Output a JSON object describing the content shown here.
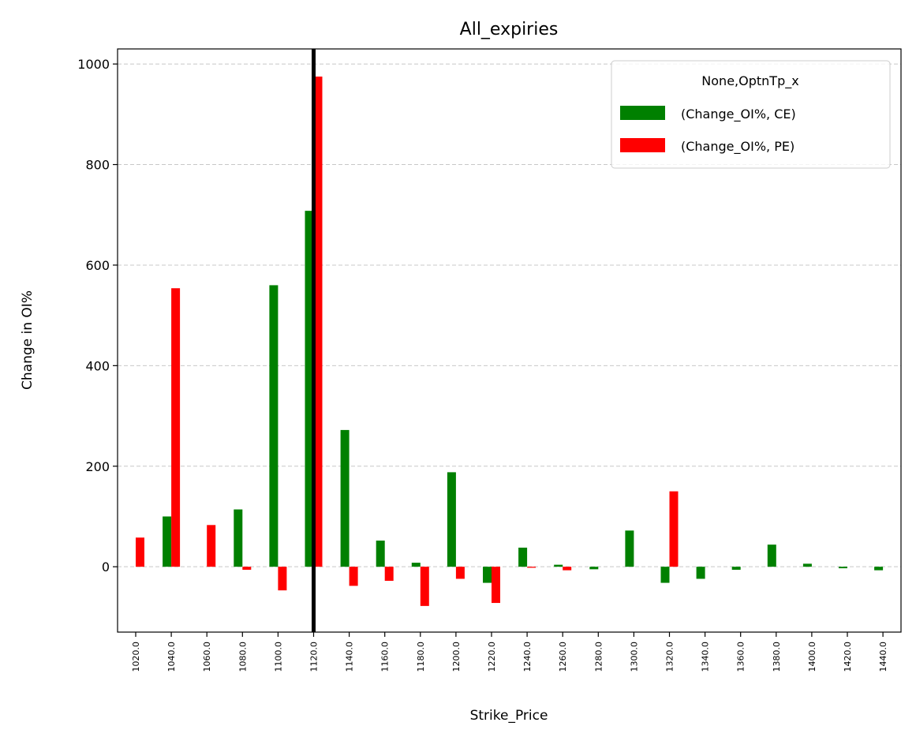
{
  "chart_data": {
    "type": "bar",
    "title": "All_expiries",
    "xlabel": "Strike_Price",
    "ylabel": "Change in OI%",
    "ylim": [
      -130,
      1030
    ],
    "yticks": [
      0,
      200,
      400,
      600,
      800,
      1000
    ],
    "grid": "y-dashed",
    "legend_placement": "top-right",
    "legend_title": "None,OptnTp_x",
    "categories": [
      "1020.0",
      "1040.0",
      "1060.0",
      "1080.0",
      "1100.0",
      "1120.0",
      "1140.0",
      "1160.0",
      "1180.0",
      "1200.0",
      "1220.0",
      "1240.0",
      "1260.0",
      "1280.0",
      "1300.0",
      "1320.0",
      "1340.0",
      "1360.0",
      "1380.0",
      "1400.0",
      "1420.0",
      "1440.0"
    ],
    "series": [
      {
        "name": "(Change_OI%, CE)",
        "color": "#008000",
        "values": [
          0,
          100,
          0,
          114,
          560,
          708,
          272,
          52,
          8,
          188,
          -32,
          38,
          4,
          -5,
          72,
          -32,
          -24,
          -6,
          44,
          6,
          -3,
          -7
        ]
      },
      {
        "name": "(Change_OI%, PE)",
        "color": "#ff0000",
        "values": [
          58,
          554,
          83,
          -6,
          -47,
          975,
          -38,
          -28,
          -78,
          -24,
          -72,
          -2,
          -7,
          0,
          0,
          150,
          0,
          0,
          0,
          0,
          0,
          0
        ]
      }
    ],
    "vline": {
      "category": "1120.0",
      "color": "#000000"
    }
  }
}
